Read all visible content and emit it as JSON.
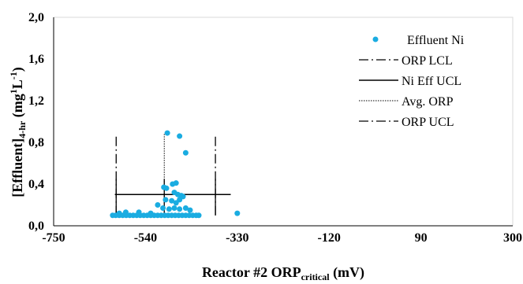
{
  "chart_data": {
    "type": "scatter",
    "xlabel": {
      "main": "Reactor #2 ORP",
      "sub": "critical",
      "unit": " (mV)"
    },
    "ylabel": {
      "main": "[Effluent]",
      "sub": "4-hr",
      "unit_open": " (mg",
      "sup1": "1",
      "unit_mid": "L",
      "sup2": "-1",
      "unit_close": ")"
    },
    "xlim": [
      -750,
      300
    ],
    "ylim": [
      0,
      2.0
    ],
    "x_ticks": [
      -750,
      -540,
      -330,
      -120,
      90,
      300
    ],
    "x_tick_labels": [
      "-750",
      "-540",
      "-330",
      "-120",
      "90",
      "300"
    ],
    "y_ticks": [
      0,
      0.4,
      0.8,
      1.2,
      1.6,
      2.0
    ],
    "y_tick_labels": [
      "0,0",
      "0,4",
      "0,8",
      "1,2",
      "1,6",
      "2,0"
    ],
    "grid": false,
    "legend_position": "top-right",
    "colors": {
      "points": "#1aace1",
      "lines": "#000000"
    },
    "series": [
      {
        "name": "Effluent Ni",
        "kind": "points",
        "points": [
          [
            -490,
            0.89
          ],
          [
            -462,
            0.86
          ],
          [
            -448,
            0.7
          ],
          [
            -585,
            0.13
          ],
          [
            -330,
            0.12
          ],
          [
            -498,
            0.37
          ],
          [
            -492,
            0.36
          ],
          [
            -478,
            0.4
          ],
          [
            -470,
            0.41
          ],
          [
            -474,
            0.32
          ],
          [
            -466,
            0.3
          ],
          [
            -458,
            0.29
          ],
          [
            -462,
            0.25
          ],
          [
            -454,
            0.28
          ],
          [
            -494,
            0.25
          ],
          [
            -480,
            0.24
          ],
          [
            -470,
            0.22
          ],
          [
            -512,
            0.2
          ],
          [
            -500,
            0.17
          ],
          [
            -486,
            0.16
          ],
          [
            -474,
            0.17
          ],
          [
            -462,
            0.16
          ],
          [
            -448,
            0.17
          ],
          [
            -438,
            0.15
          ],
          [
            -528,
            0.12
          ],
          [
            -555,
            0.13
          ],
          [
            -600,
            0.12
          ],
          [
            -615,
            0.1
          ],
          [
            -608,
            0.1
          ],
          [
            -600,
            0.1
          ],
          [
            -592,
            0.1
          ],
          [
            -584,
            0.1
          ],
          [
            -576,
            0.1
          ],
          [
            -568,
            0.1
          ],
          [
            -560,
            0.1
          ],
          [
            -552,
            0.1
          ],
          [
            -544,
            0.1
          ],
          [
            -536,
            0.1
          ],
          [
            -528,
            0.1
          ],
          [
            -520,
            0.1
          ],
          [
            -512,
            0.1
          ],
          [
            -504,
            0.1
          ],
          [
            -496,
            0.1
          ],
          [
            -488,
            0.1
          ],
          [
            -480,
            0.1
          ],
          [
            -472,
            0.1
          ],
          [
            -464,
            0.1
          ],
          [
            -456,
            0.1
          ],
          [
            -448,
            0.1
          ],
          [
            -440,
            0.1
          ],
          [
            -432,
            0.1
          ],
          [
            -424,
            0.1
          ],
          [
            -418,
            0.1
          ]
        ]
      },
      {
        "name": "ORP LCL",
        "kind": "vline",
        "x": -607,
        "y": [
          0.1,
          0.88
        ],
        "dash": "12,4,2,4"
      },
      {
        "name": "Ni Eff UCL",
        "kind": "hline",
        "y": 0.3,
        "x": [
          -610,
          -345
        ]
      },
      {
        "name": "Avg. ORP",
        "kind": "vline",
        "x": -497,
        "y": [
          0.1,
          0.88
        ],
        "dash": "1.5,1.5"
      },
      {
        "name": "ORP UCL",
        "kind": "vline",
        "x": -380,
        "y": [
          0.1,
          0.88
        ],
        "dash": "12,4,2,4"
      },
      {
        "name": "",
        "kind": "vline",
        "x": -607,
        "y": [
          0.1,
          0.45
        ]
      },
      {
        "name": "",
        "kind": "vline",
        "x": -497,
        "y": [
          0.1,
          0.45
        ]
      },
      {
        "name": "",
        "kind": "vline",
        "x": -380,
        "y": [
          0.1,
          0.45
        ]
      }
    ]
  }
}
